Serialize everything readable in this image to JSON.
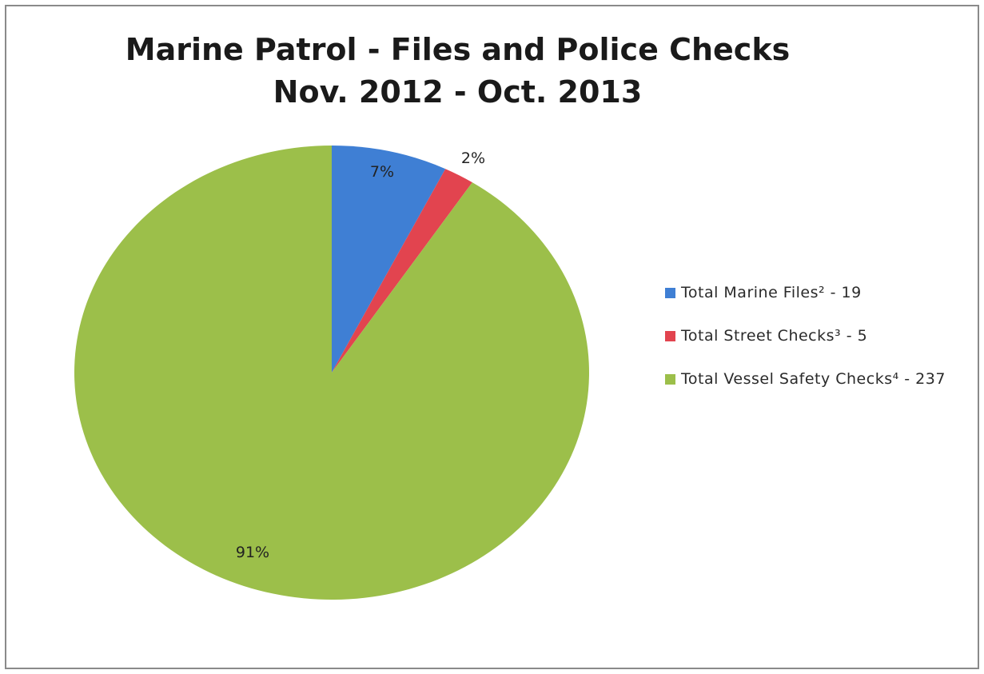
{
  "chart_data": {
    "type": "pie",
    "title": "Marine Patrol - Files and Police Checks",
    "subtitle": "Nov. 2012 - Oct. 2013",
    "slices": [
      {
        "label": "Total Marine Files² - 19",
        "value": 19,
        "percent_label": "7%",
        "color": "#3f7fd4"
      },
      {
        "label": "Total Street Checks³ - 5",
        "value": 5,
        "percent_label": "2%",
        "color": "#e2444f"
      },
      {
        "label": "Total Vessel Safety Checks⁴ - 237",
        "value": 237,
        "percent_label": "91%",
        "color": "#9cbf4a"
      }
    ],
    "legend_position": "right"
  }
}
